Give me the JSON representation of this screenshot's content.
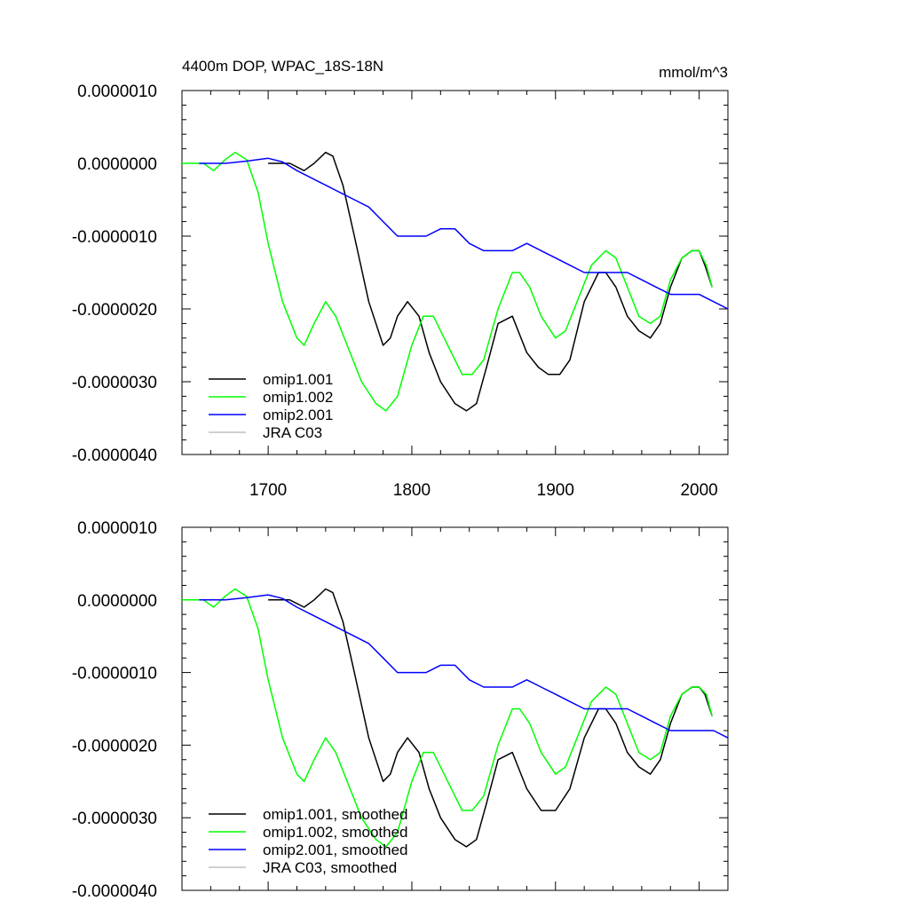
{
  "chart_data": [
    {
      "type": "line",
      "title": "4400m DOP, WPAC_18S-18N",
      "units": "mmol/m^3",
      "xlim": [
        1640,
        2020
      ],
      "ylim": [
        -4e-06,
        1e-06
      ],
      "x_ticks": [
        1700,
        1800,
        1900,
        2000
      ],
      "x_tick_labels": [
        "1700",
        "1800",
        "1900",
        "2000"
      ],
      "y_ticks": [
        1e-06,
        0,
        -1e-06,
        -2e-06,
        -3e-06,
        -4e-06
      ],
      "y_tick_labels": [
        "0.0000010",
        "0.0000000",
        "-0.0000010",
        "-0.0000020",
        "-0.0000030",
        "-0.0000040"
      ],
      "legend": [
        "omip1.001",
        "omip1.002",
        "omip2.001",
        "JRA C03"
      ],
      "series": [
        {
          "name": "omip1.001",
          "color": "#000000",
          "x": [
            1700,
            1715,
            1725,
            1732,
            1740,
            1745,
            1752,
            1760,
            1770,
            1780,
            1785,
            1790,
            1797,
            1805,
            1812,
            1820,
            1830,
            1838,
            1845,
            1852,
            1860,
            1870,
            1880,
            1888,
            1895,
            1903,
            1910,
            1920,
            1930,
            1935,
            1942,
            1950,
            1958,
            1966,
            1973,
            1980,
            1988,
            1995,
            2000,
            2004,
            2009
          ],
          "values": [
            0,
            0,
            -1e-07,
            0,
            1.5e-07,
            1e-07,
            -3e-07,
            -1e-06,
            -1.9e-06,
            -2.5e-06,
            -2.4e-06,
            -2.1e-06,
            -1.9e-06,
            -2.1e-06,
            -2.6e-06,
            -3e-06,
            -3.3e-06,
            -3.4e-06,
            -3.3e-06,
            -2.8e-06,
            -2.2e-06,
            -2.1e-06,
            -2.6e-06,
            -2.8e-06,
            -2.9e-06,
            -2.9e-06,
            -2.7e-06,
            -1.9e-06,
            -1.5e-06,
            -1.5e-06,
            -1.7e-06,
            -2.1e-06,
            -2.3e-06,
            -2.4e-06,
            -2.2e-06,
            -1.7e-06,
            -1.3e-06,
            -1.2e-06,
            -1.2e-06,
            -1.4e-06,
            -1.7e-06
          ]
        },
        {
          "name": "omip1.002",
          "color": "#00ff00",
          "x": [
            1640,
            1655,
            1662,
            1670,
            1677,
            1685,
            1693,
            1700,
            1710,
            1720,
            1725,
            1732,
            1740,
            1747,
            1755,
            1765,
            1775,
            1782,
            1790,
            1800,
            1808,
            1815,
            1825,
            1835,
            1842,
            1850,
            1860,
            1870,
            1875,
            1882,
            1890,
            1900,
            1907,
            1915,
            1925,
            1935,
            1942,
            1950,
            1958,
            1966,
            1973,
            1980,
            1988,
            1995,
            2000,
            2005,
            2009
          ],
          "values": [
            0,
            0,
            -1e-07,
            5e-08,
            1.5e-07,
            5e-08,
            -4e-07,
            -1.1e-06,
            -1.9e-06,
            -2.4e-06,
            -2.5e-06,
            -2.2e-06,
            -1.9e-06,
            -2.1e-06,
            -2.5e-06,
            -3e-06,
            -3.3e-06,
            -3.4e-06,
            -3.2e-06,
            -2.5e-06,
            -2.1e-06,
            -2.1e-06,
            -2.5e-06,
            -2.9e-06,
            -2.9e-06,
            -2.7e-06,
            -2e-06,
            -1.5e-06,
            -1.5e-06,
            -1.7e-06,
            -2.1e-06,
            -2.4e-06,
            -2.3e-06,
            -1.9e-06,
            -1.4e-06,
            -1.2e-06,
            -1.3e-06,
            -1.7e-06,
            -2.1e-06,
            -2.2e-06,
            -2.1e-06,
            -1.6e-06,
            -1.3e-06,
            -1.2e-06,
            -1.2e-06,
            -1.4e-06,
            -1.7e-06
          ]
        },
        {
          "name": "omip2.001",
          "color": "#0000ff",
          "x": [
            1652,
            1670,
            1685,
            1700,
            1710,
            1720,
            1730,
            1740,
            1750,
            1760,
            1770,
            1780,
            1790,
            1800,
            1810,
            1820,
            1825,
            1830,
            1840,
            1850,
            1860,
            1870,
            1880,
            1890,
            1900,
            1910,
            1920,
            1930,
            1940,
            1950,
            1960,
            1970,
            1980,
            1990,
            2000,
            2010,
            2020
          ],
          "values": [
            0,
            0,
            3e-08,
            7e-08,
            2e-08,
            -1e-07,
            -2e-07,
            -3e-07,
            -4e-07,
            -5e-07,
            -6e-07,
            -8e-07,
            -1e-06,
            -1e-06,
            -1e-06,
            -9e-07,
            -9e-07,
            -9e-07,
            -1.1e-06,
            -1.2e-06,
            -1.2e-06,
            -1.2e-06,
            -1.1e-06,
            -1.2e-06,
            -1.3e-06,
            -1.4e-06,
            -1.5e-06,
            -1.5e-06,
            -1.5e-06,
            -1.5e-06,
            -1.6e-06,
            -1.7e-06,
            -1.8e-06,
            -1.8e-06,
            -1.8e-06,
            -1.9e-06,
            -2e-06
          ]
        },
        {
          "name": "JRA C03",
          "color": "#c0c0c0",
          "x": [],
          "values": []
        }
      ]
    },
    {
      "type": "line",
      "title": "",
      "units": "",
      "xlim": [
        1640,
        2020
      ],
      "ylim": [
        -4e-06,
        1e-06
      ],
      "x_ticks": [
        1700,
        1800,
        1900,
        2000
      ],
      "x_tick_labels": [],
      "y_ticks": [
        1e-06,
        0,
        -1e-06,
        -2e-06,
        -3e-06,
        -4e-06
      ],
      "y_tick_labels": [
        "0.0000010",
        "0.0000000",
        "-0.0000010",
        "-0.0000020",
        "-0.0000030",
        "-0.0000040"
      ],
      "legend": [
        "omip1.001, smoothed",
        "omip1.002, smoothed",
        "omip2.001, smoothed",
        "JRA C03, smoothed"
      ],
      "series": [
        {
          "name": "omip1.001, smoothed",
          "color": "#000000",
          "x": [
            1700,
            1715,
            1725,
            1732,
            1740,
            1745,
            1752,
            1760,
            1770,
            1780,
            1785,
            1790,
            1797,
            1805,
            1812,
            1820,
            1830,
            1838,
            1845,
            1852,
            1860,
            1870,
            1880,
            1890,
            1900,
            1910,
            1920,
            1930,
            1935,
            1942,
            1950,
            1958,
            1966,
            1973,
            1980,
            1988,
            1995,
            2000,
            2004,
            2009
          ],
          "values": [
            0,
            0,
            -1e-07,
            0,
            1.5e-07,
            1e-07,
            -3e-07,
            -1e-06,
            -1.9e-06,
            -2.5e-06,
            -2.4e-06,
            -2.1e-06,
            -1.9e-06,
            -2.1e-06,
            -2.6e-06,
            -3e-06,
            -3.3e-06,
            -3.4e-06,
            -3.3e-06,
            -2.8e-06,
            -2.2e-06,
            -2.1e-06,
            -2.6e-06,
            -2.9e-06,
            -2.9e-06,
            -2.6e-06,
            -1.9e-06,
            -1.5e-06,
            -1.5e-06,
            -1.7e-06,
            -2.1e-06,
            -2.3e-06,
            -2.4e-06,
            -2.2e-06,
            -1.7e-06,
            -1.3e-06,
            -1.2e-06,
            -1.2e-06,
            -1.3e-06,
            -1.6e-06
          ]
        },
        {
          "name": "omip1.002, smoothed",
          "color": "#00ff00",
          "x": [
            1640,
            1655,
            1662,
            1670,
            1677,
            1685,
            1693,
            1700,
            1710,
            1720,
            1725,
            1732,
            1740,
            1747,
            1755,
            1765,
            1775,
            1782,
            1790,
            1800,
            1808,
            1815,
            1825,
            1835,
            1842,
            1850,
            1860,
            1870,
            1875,
            1882,
            1890,
            1900,
            1907,
            1915,
            1925,
            1935,
            1942,
            1950,
            1958,
            1966,
            1973,
            1980,
            1988,
            1995,
            2000,
            2005,
            2009
          ],
          "values": [
            0,
            0,
            -1e-07,
            5e-08,
            1.5e-07,
            5e-08,
            -4e-07,
            -1.1e-06,
            -1.9e-06,
            -2.4e-06,
            -2.5e-06,
            -2.2e-06,
            -1.9e-06,
            -2.1e-06,
            -2.5e-06,
            -3e-06,
            -3.3e-06,
            -3.4e-06,
            -3.2e-06,
            -2.5e-06,
            -2.1e-06,
            -2.1e-06,
            -2.5e-06,
            -2.9e-06,
            -2.9e-06,
            -2.7e-06,
            -2e-06,
            -1.5e-06,
            -1.5e-06,
            -1.7e-06,
            -2.1e-06,
            -2.4e-06,
            -2.3e-06,
            -1.9e-06,
            -1.4e-06,
            -1.2e-06,
            -1.3e-06,
            -1.7e-06,
            -2.1e-06,
            -2.2e-06,
            -2.1e-06,
            -1.6e-06,
            -1.3e-06,
            -1.2e-06,
            -1.2e-06,
            -1.3e-06,
            -1.6e-06
          ]
        },
        {
          "name": "omip2.001, smoothed",
          "color": "#0000ff",
          "x": [
            1652,
            1670,
            1685,
            1700,
            1710,
            1720,
            1730,
            1740,
            1750,
            1760,
            1770,
            1780,
            1790,
            1800,
            1810,
            1820,
            1825,
            1830,
            1840,
            1850,
            1860,
            1870,
            1880,
            1890,
            1900,
            1910,
            1920,
            1930,
            1940,
            1950,
            1960,
            1970,
            1980,
            1990,
            2000,
            2010,
            2020
          ],
          "values": [
            0,
            0,
            3e-08,
            7e-08,
            2e-08,
            -1e-07,
            -2e-07,
            -3e-07,
            -4e-07,
            -5e-07,
            -6e-07,
            -8e-07,
            -1e-06,
            -1e-06,
            -1e-06,
            -9e-07,
            -9e-07,
            -9e-07,
            -1.1e-06,
            -1.2e-06,
            -1.2e-06,
            -1.2e-06,
            -1.1e-06,
            -1.2e-06,
            -1.3e-06,
            -1.4e-06,
            -1.5e-06,
            -1.5e-06,
            -1.5e-06,
            -1.5e-06,
            -1.6e-06,
            -1.7e-06,
            -1.8e-06,
            -1.8e-06,
            -1.8e-06,
            -1.8e-06,
            -1.9e-06
          ]
        },
        {
          "name": "JRA C03, smoothed",
          "color": "#c0c0c0",
          "x": [],
          "values": []
        }
      ]
    }
  ]
}
